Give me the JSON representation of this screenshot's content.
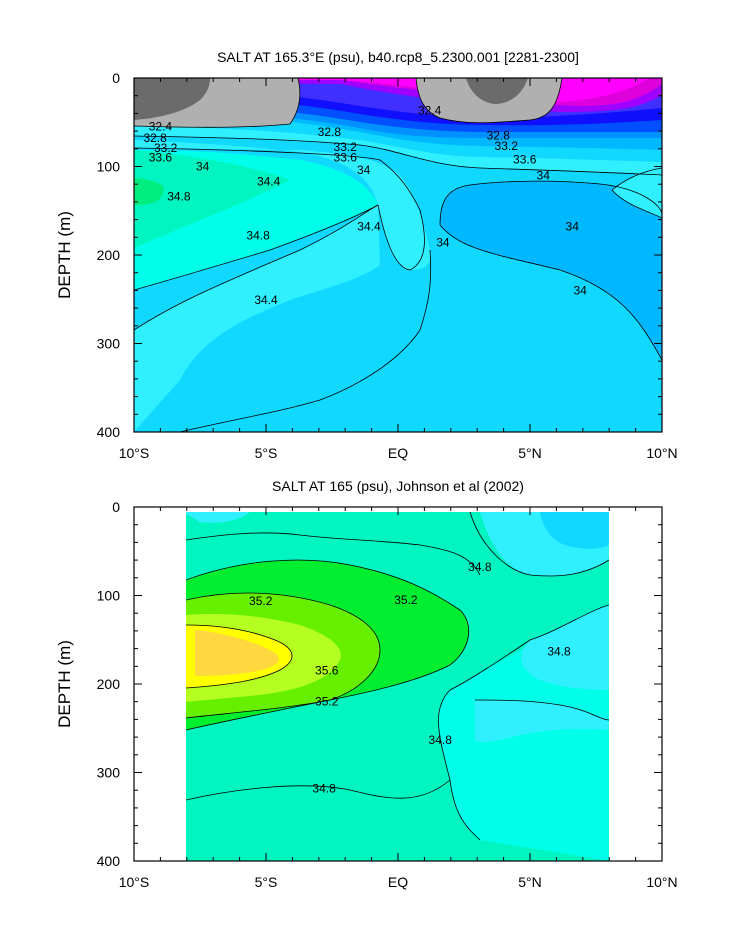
{
  "chart_data": [
    {
      "type": "heatmap",
      "title": "SALT AT 165.3°E (psu), b40.rcp8_5.2300.001 [2281-2300]",
      "ylabel": "DEPTH (m)",
      "xlabel": "",
      "xlim": [
        -10,
        10
      ],
      "ylim": [
        400,
        0
      ],
      "x_ticks": [
        {
          "value": -10,
          "label": "10°S"
        },
        {
          "value": -5,
          "label": "5°S"
        },
        {
          "value": 0,
          "label": "EQ"
        },
        {
          "value": 5,
          "label": "5°N"
        },
        {
          "value": 10,
          "label": "10°N"
        }
      ],
      "y_ticks": [
        {
          "value": 0,
          "label": "0"
        },
        {
          "value": 100,
          "label": "100"
        },
        {
          "value": 200,
          "label": "200"
        },
        {
          "value": 300,
          "label": "300"
        },
        {
          "value": 400,
          "label": "400"
        }
      ],
      "contour_labels": [
        {
          "text": "32.4",
          "x": -9.0,
          "y": 55
        },
        {
          "text": "32.8",
          "x": -9.2,
          "y": 68
        },
        {
          "text": "33.2",
          "x": -8.8,
          "y": 79
        },
        {
          "text": "33.6",
          "x": -9.0,
          "y": 90
        },
        {
          "text": "34",
          "x": -7.4,
          "y": 100
        },
        {
          "text": "34.4",
          "x": -4.9,
          "y": 117
        },
        {
          "text": "34.8",
          "x": -8.3,
          "y": 134
        },
        {
          "text": "34.8",
          "x": -5.3,
          "y": 178
        },
        {
          "text": "34.4",
          "x": -5.0,
          "y": 251
        },
        {
          "text": "32.8",
          "x": -2.6,
          "y": 61
        },
        {
          "text": "33.2",
          "x": -2.0,
          "y": 78
        },
        {
          "text": "33.6",
          "x": -2.0,
          "y": 90
        },
        {
          "text": "34",
          "x": -1.3,
          "y": 104
        },
        {
          "text": "32.4",
          "x": 1.2,
          "y": 37
        },
        {
          "text": "34.4",
          "x": -1.1,
          "y": 168
        },
        {
          "text": "34",
          "x": 1.7,
          "y": 186
        },
        {
          "text": "32.8",
          "x": 3.8,
          "y": 65
        },
        {
          "text": "33.2",
          "x": 4.1,
          "y": 77
        },
        {
          "text": "33.6",
          "x": 4.8,
          "y": 92
        },
        {
          "text": "34",
          "x": 5.5,
          "y": 110
        },
        {
          "text": "34",
          "x": 6.6,
          "y": 168
        },
        {
          "text": "34",
          "x": 6.9,
          "y": 240
        }
      ]
    },
    {
      "type": "heatmap",
      "title": "SALT AT 165 (psu), Johnson et al (2002)",
      "ylabel": "DEPTH (m)",
      "xlabel": "",
      "xlim": [
        -10,
        10
      ],
      "ylim": [
        400,
        0
      ],
      "x_ticks": [
        {
          "value": -10,
          "label": "10°S"
        },
        {
          "value": -5,
          "label": "5°S"
        },
        {
          "value": 0,
          "label": "EQ"
        },
        {
          "value": 5,
          "label": "5°N"
        },
        {
          "value": 10,
          "label": "10°N"
        }
      ],
      "y_ticks": [
        {
          "value": 0,
          "label": "0"
        },
        {
          "value": 100,
          "label": "100"
        },
        {
          "value": 200,
          "label": "200"
        },
        {
          "value": 300,
          "label": "300"
        },
        {
          "value": 400,
          "label": "400"
        }
      ],
      "contour_labels": [
        {
          "text": "35.2",
          "x": -5.2,
          "y": 106
        },
        {
          "text": "35.2",
          "x": 0.3,
          "y": 105
        },
        {
          "text": "35.6",
          "x": -2.7,
          "y": 185
        },
        {
          "text": "35.2",
          "x": -2.7,
          "y": 220
        },
        {
          "text": "34.8",
          "x": 3.1,
          "y": 68
        },
        {
          "text": "34.8",
          "x": 6.1,
          "y": 163
        },
        {
          "text": "34.8",
          "x": 1.6,
          "y": 263
        },
        {
          "text": "34.8",
          "x": -2.8,
          "y": 318
        }
      ]
    }
  ],
  "colors": {
    "dark_gray": "#6b6b6b",
    "light_gray": "#b0b0b0",
    "magenta": "#ff00ff",
    "dark_magenta": "#dd00dd",
    "purple": "#a000ff",
    "blue_violet": "#4030ff",
    "blue": "#1010ff",
    "mid_blue": "#0050ff",
    "azure": "#0090ff",
    "sky": "#00b8ff",
    "cyan_blue": "#10d8ff",
    "cyan": "#30f0ff",
    "aqua": "#00ffe8",
    "turquoise": "#00f5c0",
    "sea_green": "#00e4a0",
    "green": "#00ee30",
    "lime": "#66f000",
    "yellow_green": "#b4ff20",
    "yellow": "#ffff00",
    "gold": "#ffd840"
  }
}
